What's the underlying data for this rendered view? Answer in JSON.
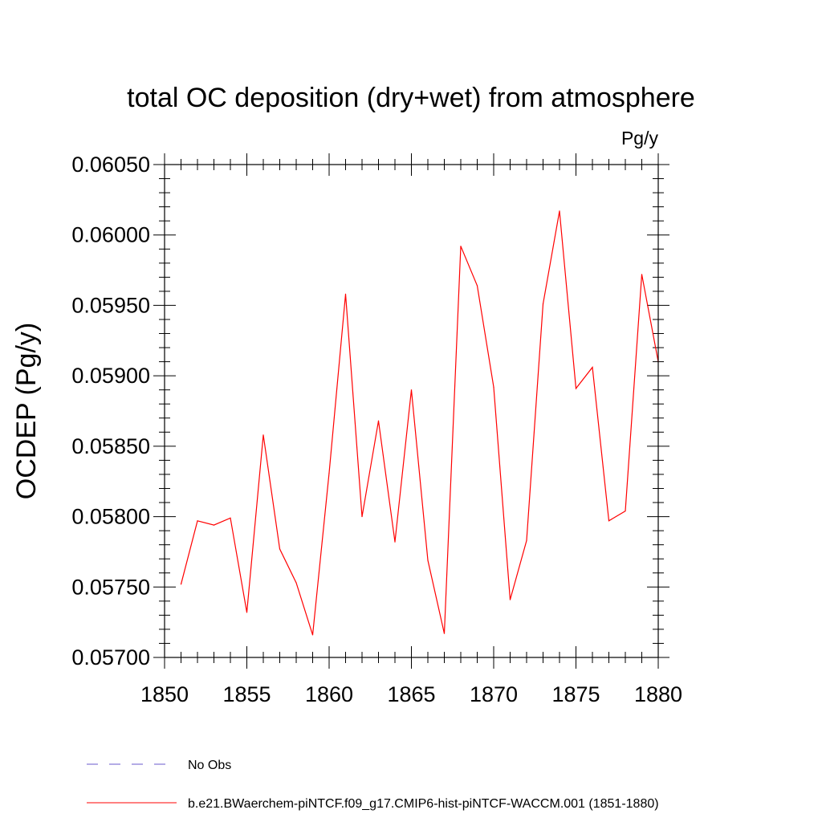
{
  "chart_data": {
    "type": "line",
    "title": "total OC deposition (dry+wet) from atmosphere",
    "units": "Pg/y",
    "xlabel": "",
    "ylabel": "OCDEP  (Pg/y)",
    "xlim": [
      1850,
      1880
    ],
    "ylim": [
      0.057,
      0.0605
    ],
    "x_major_ticks": [
      1850,
      1855,
      1860,
      1865,
      1870,
      1875,
      1880
    ],
    "x_tick_labels": [
      "1850",
      "1855",
      "1860",
      "1865",
      "1870",
      "1875",
      "1880"
    ],
    "y_major_ticks": [
      0.057,
      0.0575,
      0.058,
      0.0585,
      0.059,
      0.0595,
      0.06,
      0.0605
    ],
    "y_tick_labels": [
      "0.05700",
      "0.05750",
      "0.05800",
      "0.05850",
      "0.05900",
      "0.05950",
      "0.06000",
      "0.06050"
    ],
    "grid": false,
    "legend_position": "bottom",
    "series": [
      {
        "name": "b.e21.BWaerchem-piNTCF.f09_g17.CMIP6-hist-piNTCF-WACCM.001 (1851-1880)",
        "color": "#ff0000",
        "style": "solid",
        "x": [
          1851,
          1852,
          1853,
          1854,
          1855,
          1856,
          1857,
          1858,
          1859,
          1860,
          1861,
          1862,
          1863,
          1864,
          1865,
          1866,
          1867,
          1868,
          1869,
          1870,
          1871,
          1872,
          1873,
          1874,
          1875,
          1876,
          1877,
          1878,
          1879,
          1880
        ],
        "y": [
          0.05752,
          0.05797,
          0.05794,
          0.05799,
          0.05732,
          0.05858,
          0.05777,
          0.05753,
          0.05716,
          0.05831,
          0.05958,
          0.058,
          0.05868,
          0.05782,
          0.0589,
          0.05769,
          0.05717,
          0.05992,
          0.05964,
          0.05892,
          0.05741,
          0.05783,
          0.05951,
          0.06017,
          0.05891,
          0.05906,
          0.05797,
          0.05804,
          0.05972,
          0.0591
        ]
      }
    ],
    "legend": [
      {
        "label": "No Obs",
        "color": "#6a5acd",
        "style": "dashed"
      },
      {
        "label": "b.e21.BWaerchem-piNTCF.f09_g17.CMIP6-hist-piNTCF-WACCM.001 (1851-1880)",
        "color": "#ff0000",
        "style": "solid"
      }
    ]
  }
}
